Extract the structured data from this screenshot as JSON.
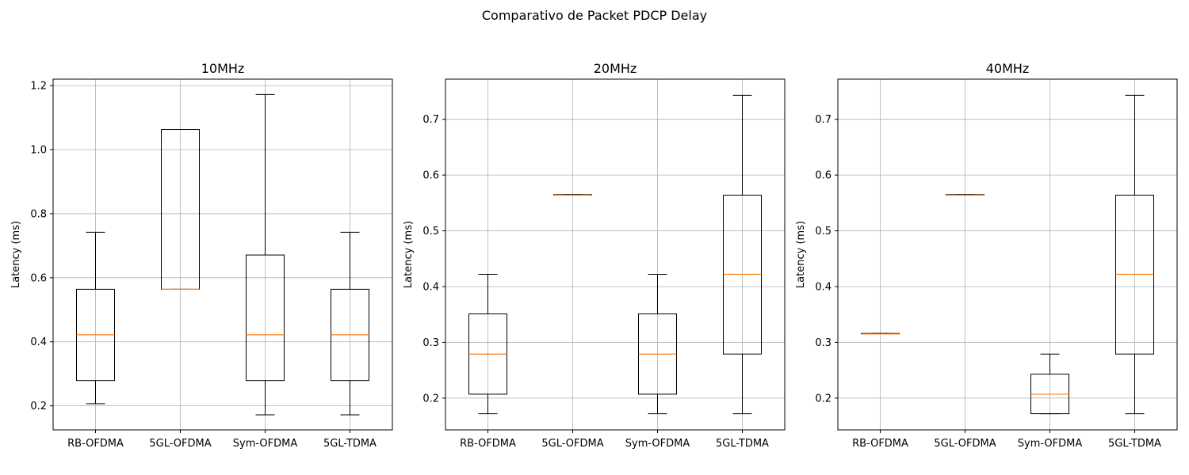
{
  "figure": {
    "title": "Comparativo de Packet PDCP Delay"
  },
  "chart_data": [
    {
      "type": "box",
      "title": "10MHz",
      "xlabel": "",
      "ylabel": "Latency (ms)",
      "ylim": [
        0.125,
        1.22
      ],
      "yticks": [
        0.2,
        0.4,
        0.6,
        0.8,
        1.0,
        1.2
      ],
      "ytick_labels": [
        "0.2",
        "0.4",
        "0.6",
        "0.8",
        "1.0",
        "1.2"
      ],
      "grid": true,
      "categories": [
        "RB-OFDMA",
        "5GL-OFDMA",
        "Sym-OFDMA",
        "5GL-TDMA"
      ],
      "boxes": [
        {
          "whislo": 0.207,
          "q1": 0.279,
          "med": 0.422,
          "q3": 0.564,
          "whishi": 0.742
        },
        {
          "whislo": 0.564,
          "q1": 0.564,
          "med": 0.564,
          "q3": 1.063,
          "whishi": 1.063
        },
        {
          "whislo": 0.172,
          "q1": 0.279,
          "med": 0.422,
          "q3": 0.671,
          "whishi": 1.172
        },
        {
          "whislo": 0.172,
          "q1": 0.279,
          "med": 0.422,
          "q3": 0.564,
          "whishi": 0.742
        }
      ]
    },
    {
      "type": "box",
      "title": "20MHz",
      "xlabel": "",
      "ylabel": "Latency (ms)",
      "ylim": [
        0.143,
        0.772
      ],
      "yticks": [
        0.2,
        0.3,
        0.4,
        0.5,
        0.6,
        0.7
      ],
      "ytick_labels": [
        "0.2",
        "0.3",
        "0.4",
        "0.5",
        "0.6",
        "0.7"
      ],
      "grid": true,
      "categories": [
        "RB-OFDMA",
        "5GL-OFDMA",
        "Sym-OFDMA",
        "5GL-TDMA"
      ],
      "boxes": [
        {
          "whislo": 0.172,
          "q1": 0.207,
          "med": 0.279,
          "q3": 0.351,
          "whishi": 0.422
        },
        {
          "whislo": 0.564,
          "q1": 0.564,
          "med": 0.564,
          "q3": 0.565,
          "whishi": 0.565
        },
        {
          "whislo": 0.172,
          "q1": 0.207,
          "med": 0.279,
          "q3": 0.351,
          "whishi": 0.422
        },
        {
          "whislo": 0.172,
          "q1": 0.279,
          "med": 0.422,
          "q3": 0.564,
          "whishi": 0.743
        }
      ]
    },
    {
      "type": "box",
      "title": "40MHz",
      "xlabel": "",
      "ylabel": "Latency (ms)",
      "ylim": [
        0.143,
        0.772
      ],
      "yticks": [
        0.2,
        0.3,
        0.4,
        0.5,
        0.6,
        0.7
      ],
      "ytick_labels": [
        "0.2",
        "0.3",
        "0.4",
        "0.5",
        "0.6",
        "0.7"
      ],
      "grid": true,
      "categories": [
        "RB-OFDMA",
        "5GL-OFDMA",
        "Sym-OFDMA",
        "5GL-TDMA"
      ],
      "boxes": [
        {
          "whislo": 0.315,
          "q1": 0.315,
          "med": 0.315,
          "q3": 0.316,
          "whishi": 0.316
        },
        {
          "whislo": 0.564,
          "q1": 0.564,
          "med": 0.564,
          "q3": 0.565,
          "whishi": 0.565
        },
        {
          "whislo": 0.172,
          "q1": 0.172,
          "med": 0.207,
          "q3": 0.243,
          "whishi": 0.279
        },
        {
          "whislo": 0.172,
          "q1": 0.279,
          "med": 0.422,
          "q3": 0.564,
          "whishi": 0.743
        }
      ]
    }
  ],
  "colors": {
    "box": "#000000",
    "median": "#ff7f0e",
    "grid": "#b0b0b0",
    "axis": "#000000"
  }
}
